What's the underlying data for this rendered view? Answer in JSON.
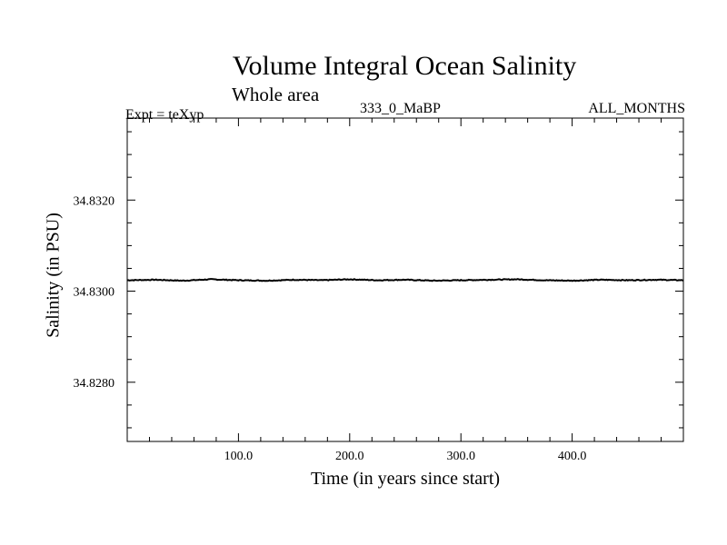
{
  "chart_data": {
    "type": "line",
    "title": "Volume Integral Ocean Salinity",
    "subtitle": "Whole area",
    "annotations": {
      "left": "Expt = teXyp",
      "center": "333_0_MaBP",
      "right": "ALL_MONTHS"
    },
    "xlabel": "Time (in years since start)",
    "ylabel": "Salinity (in PSU)",
    "xlim": [
      0,
      500
    ],
    "ylim": [
      34.8267,
      34.8338
    ],
    "x_ticks": [
      100,
      200,
      300,
      400
    ],
    "x_tick_labels": [
      "100.0",
      "200.0",
      "300.0",
      "400.0"
    ],
    "y_ticks": [
      34.828,
      34.83,
      34.832
    ],
    "y_tick_labels": [
      "34.8280",
      "34.8300",
      "34.8320"
    ],
    "grid": false,
    "series": [
      {
        "x": [
          0,
          25,
          50,
          75,
          100,
          125,
          150,
          175,
          200,
          225,
          250,
          275,
          300,
          325,
          350,
          375,
          400,
          425,
          450,
          475,
          500
        ],
        "values": [
          34.83024,
          34.83025,
          34.83023,
          34.83026,
          34.83024,
          34.83023,
          34.83025,
          34.83024,
          34.83026,
          34.83024,
          34.83025,
          34.83023,
          34.83024,
          34.83025,
          34.83026,
          34.83024,
          34.83023,
          34.83025,
          34.83024,
          34.83025,
          34.83024
        ]
      }
    ]
  }
}
